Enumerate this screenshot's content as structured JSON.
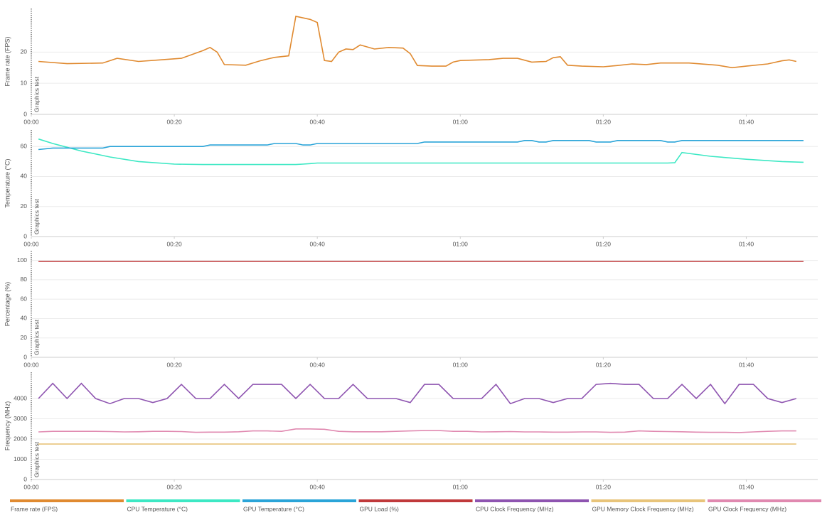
{
  "chart_data": [
    {
      "type": "line",
      "ylabel": "Frame rate (FPS)",
      "annotation": "Graphics test",
      "xlim": [
        0,
        110
      ],
      "xticks": [
        {
          "value": 0,
          "label": "00:00"
        },
        {
          "value": 20,
          "label": "00:20"
        },
        {
          "value": 40,
          "label": "00:40"
        },
        {
          "value": 60,
          "label": "01:00"
        },
        {
          "value": 80,
          "label": "01:20"
        },
        {
          "value": 100,
          "label": "01:40"
        }
      ],
      "ylim": [
        0,
        34
      ],
      "yticks": [
        0,
        10,
        20
      ],
      "grid": true,
      "x": [
        1,
        5,
        10,
        12,
        15,
        18,
        21,
        24,
        25,
        26,
        27,
        30,
        32,
        34,
        36,
        37,
        39,
        40,
        41,
        42,
        43,
        44,
        45,
        46,
        48,
        50,
        52,
        53,
        54,
        56,
        58,
        59,
        60,
        64,
        66,
        68,
        70,
        72,
        73,
        74,
        75,
        77,
        80,
        82,
        84,
        86,
        88,
        92,
        96,
        98,
        100,
        103,
        105,
        106,
        107
      ],
      "series": [
        {
          "name": "Frame rate (FPS)",
          "color": "#e08a30",
          "values": [
            17,
            16.3,
            16.5,
            18,
            17,
            17.5,
            18,
            20.5,
            21.5,
            20,
            16,
            15.8,
            17.2,
            18.3,
            18.8,
            31.5,
            30.5,
            29.5,
            17.3,
            17,
            20,
            21,
            20.8,
            22.3,
            21,
            21.5,
            21.3,
            19.5,
            15.7,
            15.5,
            15.5,
            16.8,
            17.3,
            17.6,
            18,
            18,
            16.8,
            17,
            18.2,
            18.5,
            15.8,
            15.5,
            15.3,
            15.7,
            16.2,
            16,
            16.5,
            16.5,
            15.8,
            15,
            15.5,
            16.2,
            17.2,
            17.5,
            17
          ]
        }
      ]
    },
    {
      "type": "line",
      "ylabel": "Temperature (°C)",
      "annotation": "Graphics test",
      "xlim": [
        0,
        110
      ],
      "xticks": [
        {
          "value": 0,
          "label": "00:00"
        },
        {
          "value": 20,
          "label": "00:20"
        },
        {
          "value": 40,
          "label": "00:40"
        },
        {
          "value": 60,
          "label": "01:00"
        },
        {
          "value": 80,
          "label": "01:20"
        },
        {
          "value": 100,
          "label": "01:40"
        }
      ],
      "ylim": [
        0,
        71
      ],
      "yticks": [
        0,
        20,
        40,
        60
      ],
      "grid": true,
      "x": [
        1,
        3,
        5,
        7,
        10,
        11,
        15,
        20,
        24,
        25,
        30,
        33,
        34,
        37,
        38,
        39,
        40,
        45,
        50,
        54,
        55,
        60,
        68,
        69,
        70,
        71,
        72,
        73,
        78,
        79,
        81,
        82,
        88,
        89,
        90,
        91,
        95,
        100,
        105,
        108
      ],
      "series": [
        {
          "name": "CPU Temperature (°C)",
          "color": "#3de8c4",
          "values": [
            65,
            62,
            59.5,
            57,
            54,
            53,
            50,
            48.3,
            48,
            48,
            48,
            48,
            48,
            48,
            48.3,
            48.6,
            49,
            49,
            49,
            49,
            49,
            49,
            49,
            49,
            49,
            49,
            49,
            49,
            49,
            49,
            49,
            49,
            49,
            49,
            49.2,
            56,
            53.5,
            51.5,
            50,
            49.5
          ]
        },
        {
          "name": "GPU Temperature (°C)",
          "color": "#2aa4d8",
          "values": [
            58,
            59,
            59,
            59,
            59,
            60,
            60,
            60,
            60,
            61,
            61,
            61,
            62,
            62,
            61,
            61,
            62,
            62,
            62,
            62,
            63,
            63,
            63,
            64,
            64,
            63,
            63,
            64,
            64,
            63,
            63,
            64,
            64,
            63,
            63,
            64,
            64,
            64,
            64,
            64
          ]
        }
      ]
    },
    {
      "type": "line",
      "ylabel": "Percentage (%)",
      "annotation": "Graphics test",
      "xlim": [
        0,
        110
      ],
      "xticks": [
        {
          "value": 0,
          "label": "00:00"
        },
        {
          "value": 20,
          "label": "00:20"
        },
        {
          "value": 40,
          "label": "00:40"
        },
        {
          "value": 60,
          "label": "01:00"
        },
        {
          "value": 80,
          "label": "01:20"
        },
        {
          "value": 100,
          "label": "01:40"
        }
      ],
      "ylim": [
        0,
        110
      ],
      "yticks": [
        0,
        20,
        40,
        60,
        80,
        100
      ],
      "grid": true,
      "x": [
        1,
        108
      ],
      "series": [
        {
          "name": "GPU Load (%)",
          "color": "#c0393b",
          "values": [
            99,
            99
          ]
        }
      ]
    },
    {
      "type": "line",
      "ylabel": "Frequency (MHz)",
      "annotation": "Graphics test",
      "xlim": [
        0,
        110
      ],
      "xticks": [
        {
          "value": 0,
          "label": "00:00"
        },
        {
          "value": 20,
          "label": "00:20"
        },
        {
          "value": 40,
          "label": "00:40"
        },
        {
          "value": 60,
          "label": "01:00"
        },
        {
          "value": 80,
          "label": "01:20"
        },
        {
          "value": 100,
          "label": "01:40"
        }
      ],
      "ylim": [
        0,
        5300
      ],
      "yticks": [
        0,
        1000,
        2000,
        3000,
        4000
      ],
      "grid": true,
      "x": [
        1,
        3,
        5,
        7,
        9,
        11,
        13,
        15,
        17,
        19,
        21,
        23,
        25,
        27,
        29,
        31,
        33,
        35,
        37,
        39,
        41,
        43,
        45,
        47,
        49,
        51,
        53,
        55,
        57,
        59,
        61,
        63,
        65,
        67,
        69,
        71,
        73,
        75,
        77,
        79,
        81,
        83,
        85,
        87,
        89,
        91,
        93,
        95,
        97,
        99,
        101,
        103,
        105,
        107
      ],
      "series": [
        {
          "name": "CPU Clock Frequency (MHz)",
          "color": "#8e54b0",
          "values": [
            4000,
            4750,
            4000,
            4750,
            4000,
            3750,
            4000,
            4000,
            3800,
            4000,
            4700,
            4000,
            4000,
            4700,
            4000,
            4700,
            4700,
            4700,
            4000,
            4700,
            4000,
            4000,
            4700,
            4000,
            4000,
            4000,
            3800,
            4700,
            4700,
            4000,
            4000,
            4000,
            4700,
            3750,
            4000,
            4000,
            3800,
            4000,
            4000,
            4700,
            4750,
            4700,
            4700,
            4000,
            4000,
            4700,
            4000,
            4700,
            3750,
            4700,
            4700,
            4000,
            3800,
            4000
          ]
        },
        {
          "name": "GPU Memory Clock Frequency (MHz)",
          "color": "#e8c47a",
          "values": [
            1750,
            1750,
            1750,
            1750,
            1750,
            1750,
            1750,
            1750,
            1750,
            1750,
            1750,
            1750,
            1750,
            1750,
            1750,
            1750,
            1750,
            1750,
            1750,
            1750,
            1750,
            1750,
            1750,
            1750,
            1750,
            1750,
            1750,
            1750,
            1750,
            1750,
            1750,
            1750,
            1750,
            1750,
            1750,
            1750,
            1750,
            1750,
            1750,
            1750,
            1750,
            1750,
            1750,
            1750,
            1750,
            1750,
            1750,
            1750,
            1750,
            1750,
            1750,
            1750,
            1750,
            1750
          ]
        },
        {
          "name": "GPU Clock Frequency (MHz)",
          "color": "#e089b0",
          "values": [
            2350,
            2380,
            2380,
            2380,
            2380,
            2370,
            2350,
            2360,
            2380,
            2380,
            2370,
            2330,
            2340,
            2340,
            2360,
            2400,
            2400,
            2380,
            2500,
            2500,
            2480,
            2380,
            2360,
            2360,
            2360,
            2380,
            2400,
            2420,
            2420,
            2380,
            2380,
            2350,
            2360,
            2370,
            2350,
            2350,
            2340,
            2340,
            2350,
            2350,
            2330,
            2340,
            2400,
            2380,
            2370,
            2360,
            2340,
            2330,
            2330,
            2320,
            2350,
            2380,
            2400,
            2400
          ]
        }
      ]
    }
  ]
}
